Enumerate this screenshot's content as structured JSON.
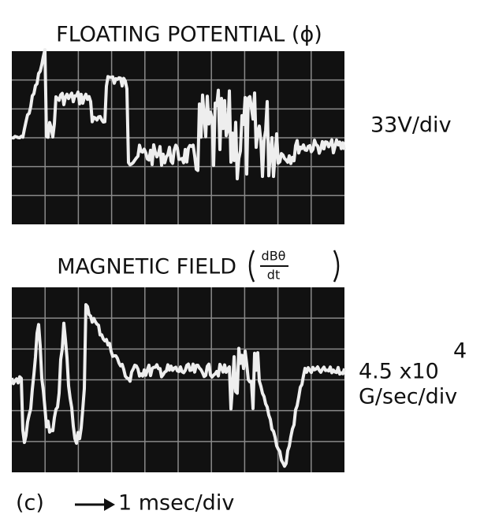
{
  "figure": {
    "panels": [
      {
        "title": "FLOATING POTENTIAL (ϕ)",
        "scale": "33V/div"
      },
      {
        "title": "MAGNETIC FIELD",
        "numerator": "dBθ",
        "denominator": "dt",
        "scale_base": "4.5 x10",
        "scale_exponent": "4",
        "scale_unit": "G/sec/div"
      }
    ],
    "label": "(c)",
    "timebase": "1 msec/div"
  }
}
